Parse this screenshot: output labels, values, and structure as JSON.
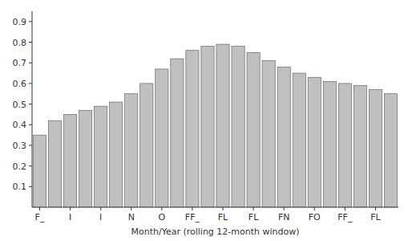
{
  "chart_data": {
    "type": "bar",
    "categories": [
      "F_",
      null,
      "I",
      null,
      "I",
      null,
      "N",
      null,
      "O",
      null,
      "FF_",
      null,
      "FL",
      null,
      "FL",
      null,
      "FN",
      null,
      "FO",
      null,
      "FF_",
      null,
      "FL",
      null
    ],
    "values": [
      0.35,
      0.42,
      0.45,
      0.47,
      0.49,
      0.51,
      0.55,
      0.6,
      0.67,
      0.72,
      0.76,
      0.78,
      0.79,
      0.78,
      0.75,
      0.71,
      0.68,
      0.65,
      0.63,
      0.61,
      0.6,
      0.59,
      0.57,
      0.55
    ],
    "color": "#c0c0c0",
    "xlabel": "Month/Year (rolling 12-month window)",
    "ylim": [
      0.0,
      0.95
    ],
    "yticks": [
      0.1,
      0.2,
      0.3,
      0.4,
      0.5,
      0.6,
      0.7,
      0.8,
      0.9
    ],
    "grid": false
  }
}
